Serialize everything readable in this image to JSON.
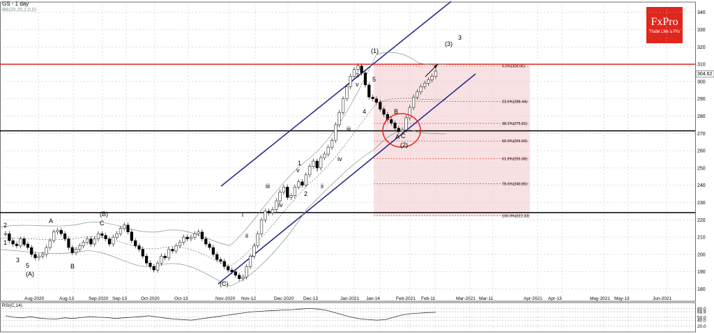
{
  "header": {
    "symbol": "GS",
    "timeframe": "- 1 day",
    "indicator": "BB(20,20,2,0,0)"
  },
  "logo": {
    "brand": "FxPro",
    "tagline": "Trade Like a Pro"
  },
  "colors": {
    "up": "#ffffff",
    "down": "#000000",
    "red_line": "#e1261c",
    "channel": "#2b2b8c",
    "fib_zone": "#f2c8cc",
    "bb": "#7a9b8a"
  },
  "chart_data": {
    "type": "candlestick",
    "title": "GS - 1 day",
    "ylim": [
      175,
      345
    ],
    "y_ticks": [
      180,
      190,
      200,
      210,
      220,
      230,
      240,
      250,
      260,
      270,
      280,
      290,
      300,
      310,
      320,
      330,
      340
    ],
    "x_labels": [
      "Aug-2020",
      "Aug-13",
      "Sep-2020",
      "Sep-13",
      "Oct-2020",
      "Oct-13",
      "Nov-2020",
      "Nov-12",
      "Dec-2020",
      "Dec-13",
      "Jan-2021",
      "Jan-14",
      "Feb-2021",
      "Feb-11",
      "Mar-2021",
      "Mar-11",
      "Apr-2021",
      "Apr-13",
      "May-2021",
      "May-13",
      "Jun-2021"
    ],
    "last_price": "304.62",
    "horizontal_levels": [
      {
        "value": 310.0,
        "color": "red"
      },
      {
        "value": 271.5,
        "color": "black"
      },
      {
        "value": 224.2,
        "color": "black"
      }
    ],
    "fibonacci": [
      {
        "label": "0.0%(308.96)",
        "value": 308.96
      },
      {
        "label": "23.6%(288.44)",
        "value": 288.44
      },
      {
        "label": "38.2%(275.81)",
        "value": 275.81
      },
      {
        "label": "50.0%(265.60)",
        "value": 265.6
      },
      {
        "label": "61.8%(255.38)",
        "value": 255.38
      },
      {
        "label": "78.6%(240.85)",
        "value": 240.85
      },
      {
        "label": "100.0%(222.33)",
        "value": 222.33
      }
    ],
    "wave_labels": [
      "2",
      "1",
      "A",
      "4",
      "3",
      "5",
      "(A)",
      "B",
      "(B)",
      "C",
      "(C)",
      "i",
      "ii",
      "iii",
      "iv",
      "v",
      "1",
      "2",
      "i",
      "ii",
      "iii",
      "iv",
      "v",
      "3",
      "4",
      "5",
      "(1)",
      "B",
      "A",
      "C",
      "(2)",
      "(3)",
      "3"
    ],
    "rsi": {
      "label": "RSI(C,14)",
      "ticks": [
        "80.0",
        "68.9",
        "50.0",
        "40.0",
        "20.0"
      ],
      "ylim": [
        0,
        100
      ]
    }
  }
}
